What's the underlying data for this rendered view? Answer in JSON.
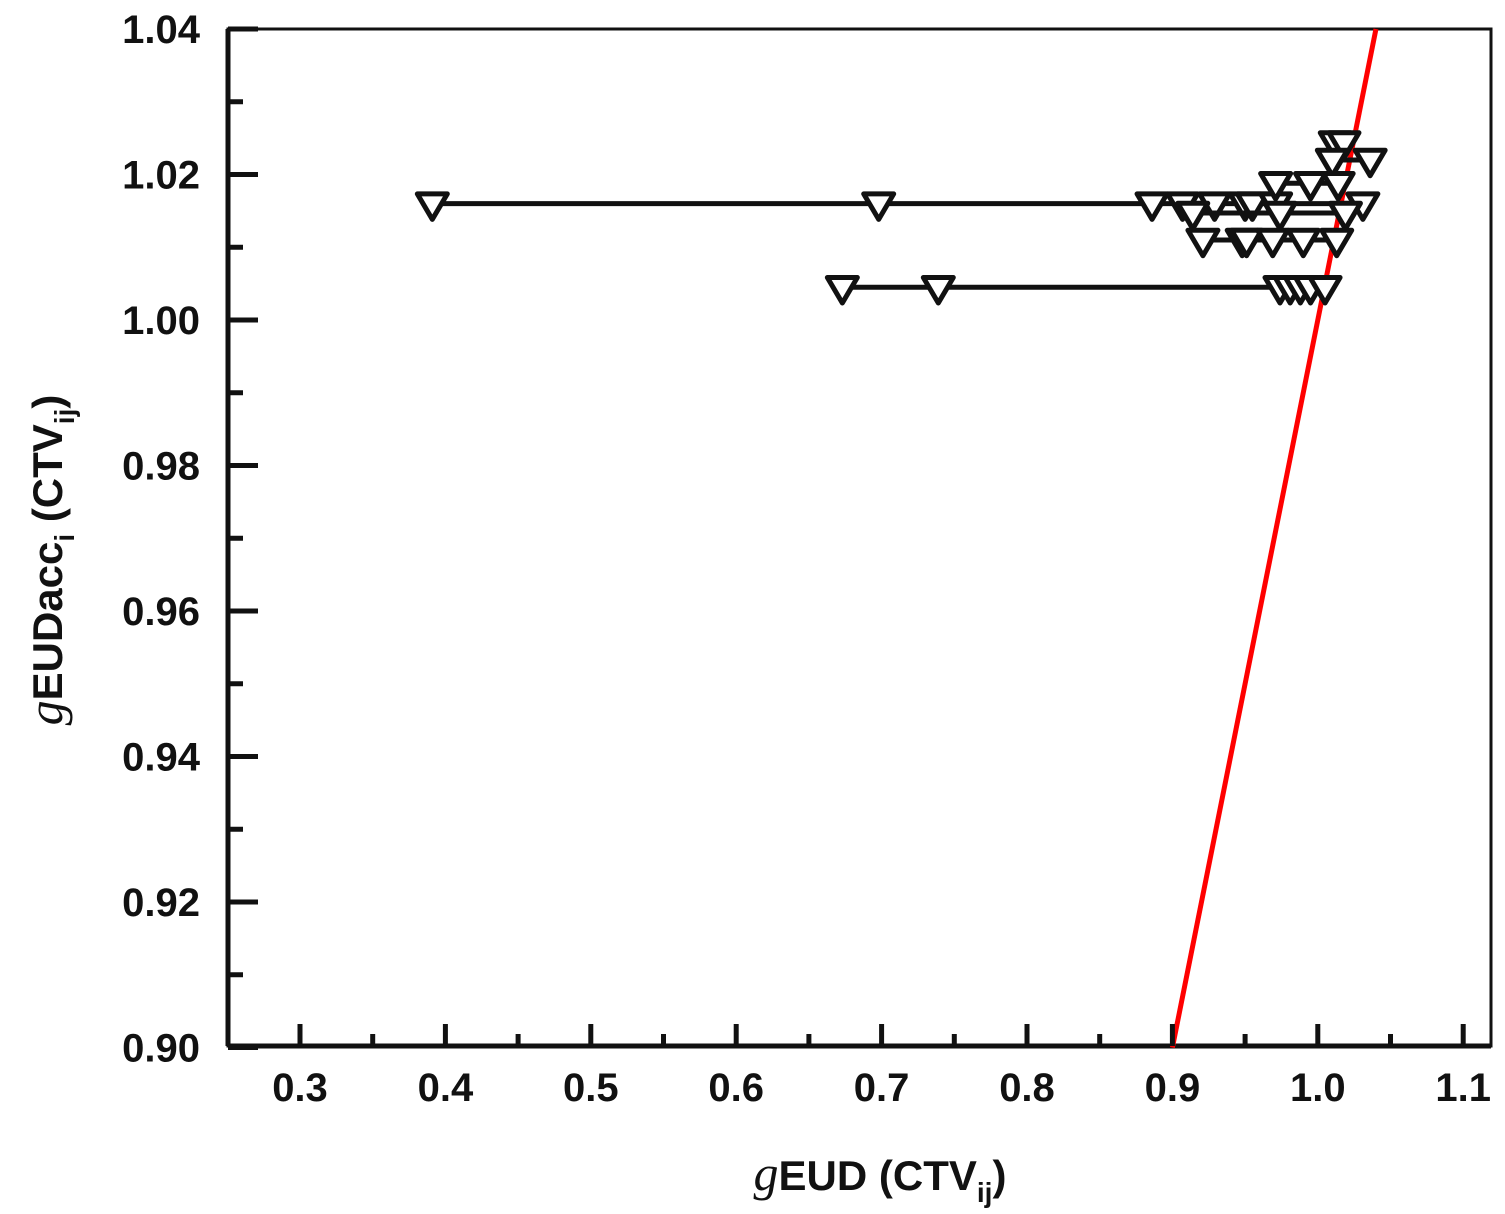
{
  "chart_data": {
    "type": "scatter",
    "title": "",
    "xlabel": "gEUD (CTVij)",
    "ylabel": "gEUDacci (CTVij)",
    "xlabel_parts": {
      "italic": "g",
      "main": "EUD (CTV",
      "sub": "ij",
      "close": ")"
    },
    "ylabel_parts": {
      "italic": "g",
      "main": "EUDacc",
      "sub1": "i",
      "mid": " (CTV",
      "sub2": "ij",
      "close": ")"
    },
    "xlim": [
      0.25,
      1.12
    ],
    "ylim": [
      0.9,
      1.04
    ],
    "x_ticks": [
      0.3,
      0.4,
      0.5,
      0.6,
      0.7,
      0.8,
      0.9,
      1.0,
      1.1
    ],
    "x_tick_labels": [
      "0.3",
      "0.4",
      "0.5",
      "0.6",
      "0.7",
      "0.8",
      "0.9",
      "1.0",
      "1.1"
    ],
    "y_ticks": [
      0.9,
      0.92,
      0.94,
      0.96,
      0.98,
      1.0,
      1.02,
      1.04
    ],
    "y_tick_labels": [
      "0.90",
      "0.92",
      "0.94",
      "0.96",
      "0.98",
      "1.00",
      "1.02",
      "1.04"
    ],
    "grid": false,
    "legend": null,
    "marker": "open-down-triangle",
    "series": [
      {
        "name": "row-1.016",
        "connected": true,
        "x": [
          0.391,
          0.698,
          0.886,
          0.907,
          0.929,
          0.95,
          0.955,
          0.971,
          1.031
        ],
        "y": [
          1.016,
          1.016,
          1.016,
          1.016,
          1.016,
          1.016,
          1.016,
          1.016,
          1.016
        ]
      },
      {
        "name": "row-1.0045",
        "connected": true,
        "x": [
          0.673,
          0.739,
          0.974,
          0.981,
          0.988,
          0.995,
          1.005
        ],
        "y": [
          1.0045,
          1.0045,
          1.0045,
          1.0045,
          1.0045,
          1.0045,
          1.0045
        ]
      },
      {
        "name": "row-1.0244",
        "connected": true,
        "x": [
          1.012,
          1.018
        ],
        "y": [
          1.0244,
          1.0244
        ]
      },
      {
        "name": "row-1.022",
        "connected": true,
        "x": [
          1.01,
          1.036
        ],
        "y": [
          1.022,
          1.022
        ]
      },
      {
        "name": "row-1.0188",
        "connected": true,
        "x": [
          0.971,
          0.995,
          1.014
        ],
        "y": [
          1.0188,
          1.0188,
          1.0188
        ]
      },
      {
        "name": "row-1.0147",
        "connected": true,
        "x": [
          0.914,
          0.974,
          1.019
        ],
        "y": [
          1.0147,
          1.0147,
          1.0147
        ]
      },
      {
        "name": "row-1.011",
        "connected": true,
        "x": [
          0.921,
          0.948,
          0.951,
          0.969,
          0.99,
          1.013
        ],
        "y": [
          1.011,
          1.011,
          1.011,
          1.011,
          1.011,
          1.011
        ]
      }
    ],
    "reference_line": {
      "name": "identity y=x",
      "color": "#ff0000",
      "x": [
        0.9,
        1.04
      ],
      "y": [
        0.9,
        1.04
      ]
    }
  }
}
